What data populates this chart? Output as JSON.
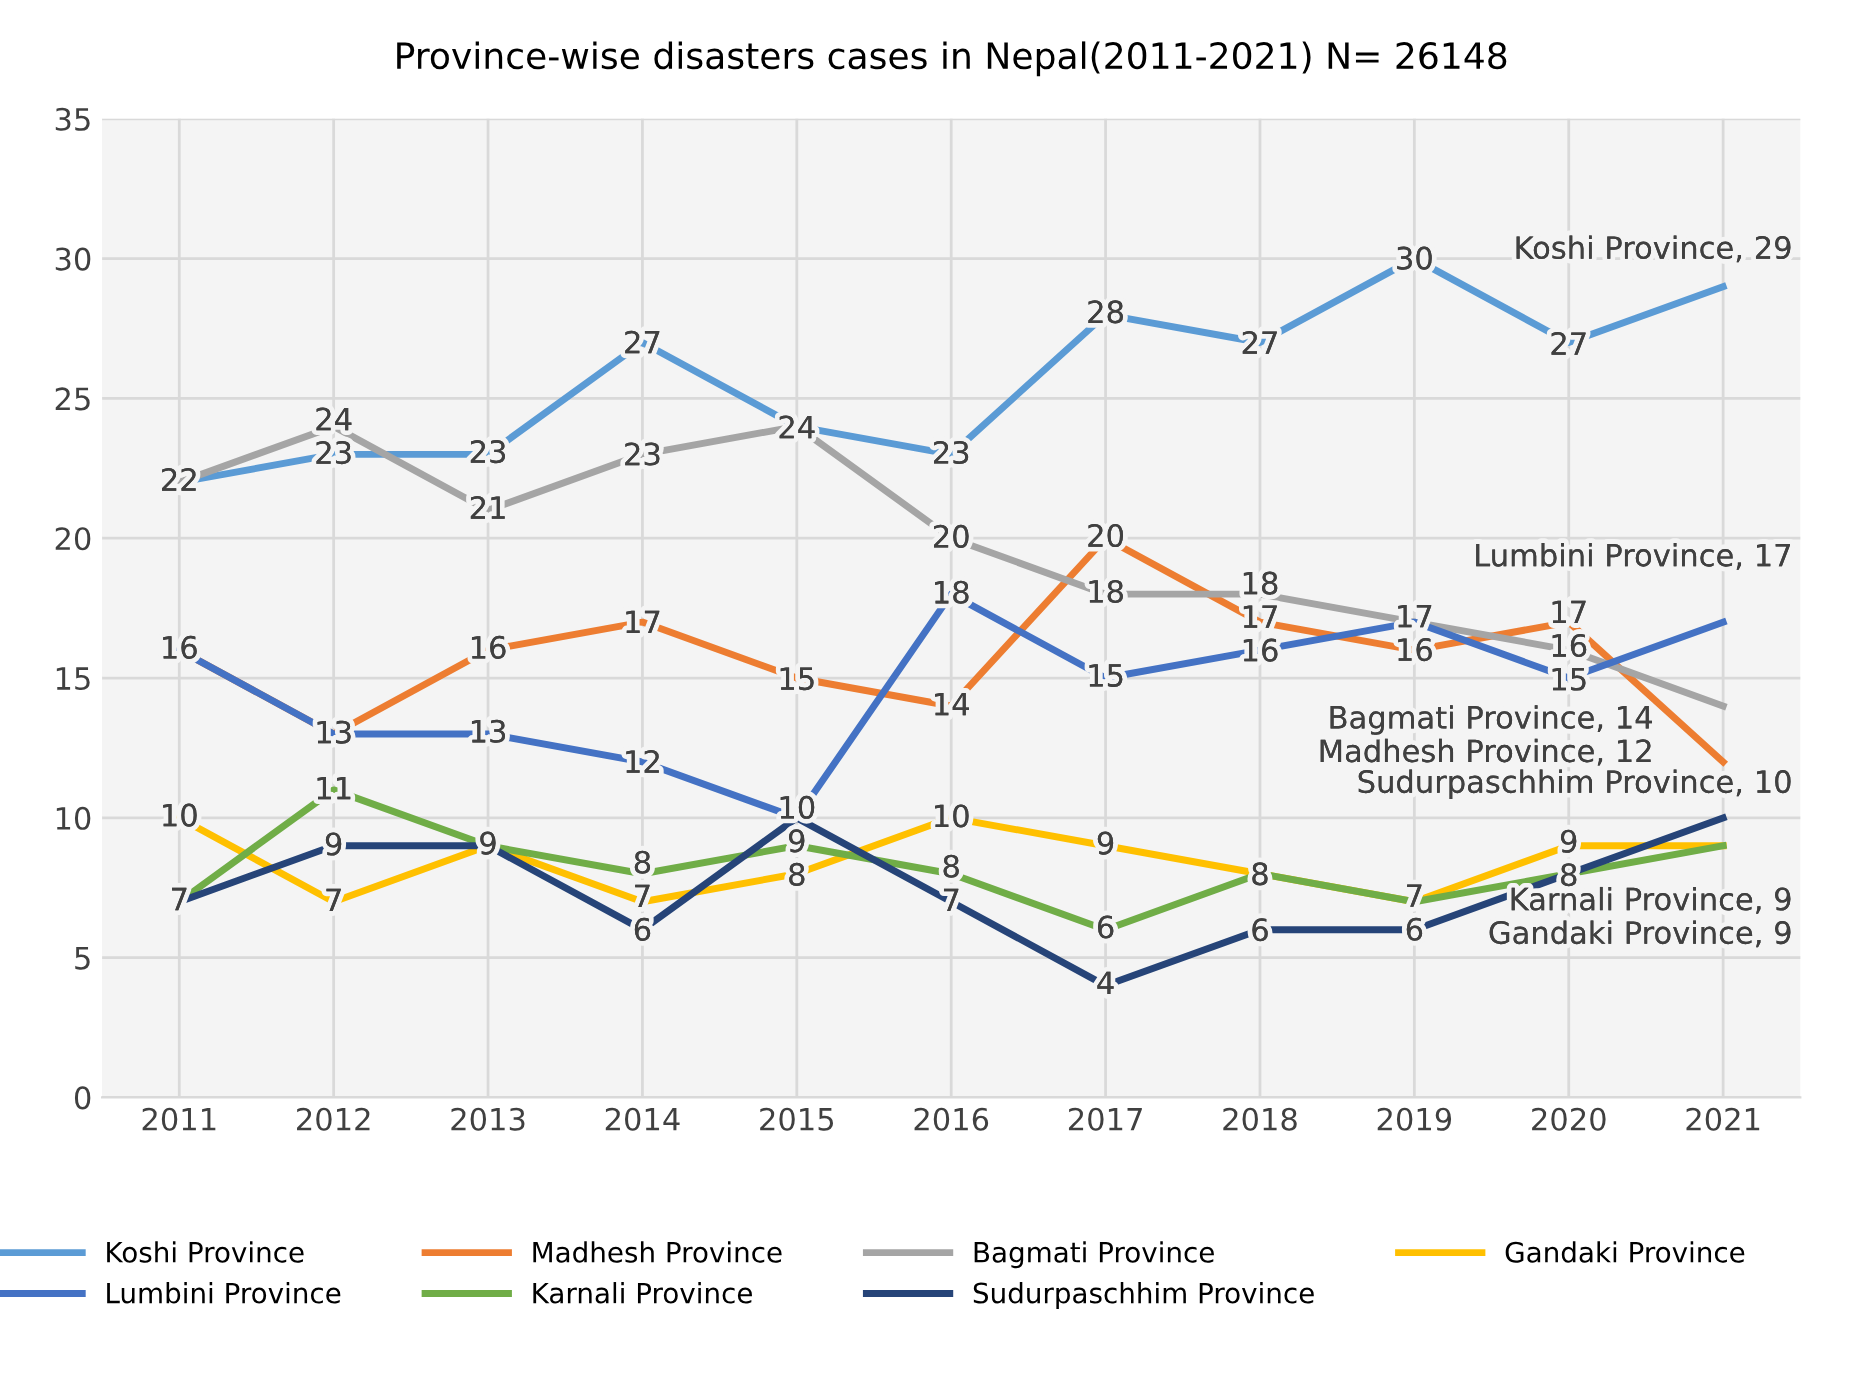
{
  "chart_data": {
    "type": "line",
    "title": "Province-wise disasters cases in Nepal(2011-2021) N= 26148",
    "categories": [
      "2011",
      "2012",
      "2013",
      "2014",
      "2015",
      "2016",
      "2017",
      "2018",
      "2019",
      "2020",
      "2021"
    ],
    "series": [
      {
        "name": "Koshi Province",
        "color": "#5b9bd5",
        "values": [
          22,
          23,
          23,
          27,
          24,
          23,
          28,
          27,
          30,
          27,
          29
        ],
        "value_labels": [
          "22",
          "23",
          "23",
          "27",
          "24",
          "23",
          "28",
          "27",
          "30",
          "27",
          null
        ]
      },
      {
        "name": "Madhesh Province",
        "color": "#ed7d31",
        "values": [
          16,
          13,
          16,
          17,
          15,
          14,
          20,
          17,
          16,
          17,
          12
        ],
        "value_labels": [
          null,
          null,
          "16",
          "17",
          "15",
          "14",
          "20",
          "17",
          "16",
          "17",
          null
        ]
      },
      {
        "name": "Bagmati Province",
        "color": "#a5a5a5",
        "values": [
          22,
          24,
          21,
          23,
          24,
          20,
          18,
          18,
          17,
          16,
          14
        ],
        "value_labels": [
          null,
          "24",
          "21",
          "23",
          null,
          "20",
          "18",
          "18",
          null,
          "16",
          null
        ]
      },
      {
        "name": "Gandaki Province",
        "color": "#ffc000",
        "values": [
          10,
          7,
          9,
          7,
          8,
          10,
          9,
          8,
          7,
          9,
          9
        ],
        "value_labels": [
          "10",
          "7",
          null,
          "7",
          "8",
          "10",
          "9",
          "8",
          "7",
          "9",
          null
        ]
      },
      {
        "name": "Lumbini Province",
        "color": "#4472c4",
        "values": [
          16,
          13,
          13,
          12,
          10,
          18,
          15,
          16,
          17,
          15,
          17
        ],
        "value_labels": [
          "16",
          "13",
          "13",
          "12",
          "10",
          "18",
          "15",
          "16",
          "17",
          "15",
          null
        ]
      },
      {
        "name": "Karnali Province",
        "color": "#70ad47",
        "values": [
          7,
          11,
          9,
          8,
          9,
          8,
          6,
          8,
          7,
          8,
          9
        ],
        "value_labels": [
          null,
          "11",
          "9",
          "8",
          "9",
          "8",
          "6",
          null,
          null,
          null,
          null
        ]
      },
      {
        "name": "Sudurpaschhim Province",
        "color": "#264478",
        "values": [
          7,
          9,
          9,
          6,
          10,
          7,
          4,
          6,
          6,
          8,
          10
        ],
        "value_labels": [
          "7",
          "9",
          null,
          "6",
          null,
          "7",
          "4",
          "6",
          "6",
          "8",
          null
        ]
      }
    ],
    "annotations": [
      {
        "text": "Koshi Province, 29",
        "x": "2021",
        "y": 29
      },
      {
        "text": "Madhesh Province, 12",
        "x": "2021",
        "y": 12
      },
      {
        "text": "Bagmati Province, 14",
        "x": "2021",
        "y": 14
      },
      {
        "text": "Gandaki Province, 9",
        "x": "2021",
        "y": 9
      },
      {
        "text": "Lumbini Province, 17",
        "x": "2021",
        "y": 17
      },
      {
        "text": "Karnali Province, 9",
        "x": "2021",
        "y": 9
      },
      {
        "text": "Sudurpaschhim Province, 10",
        "x": "2021",
        "y": 10
      }
    ],
    "ylim": [
      0,
      35
    ],
    "yticks": [
      0,
      5,
      10,
      15,
      20,
      25,
      30,
      35
    ],
    "grid": true,
    "legend": "bottom",
    "marker": "none",
    "line_style": "solid"
  }
}
